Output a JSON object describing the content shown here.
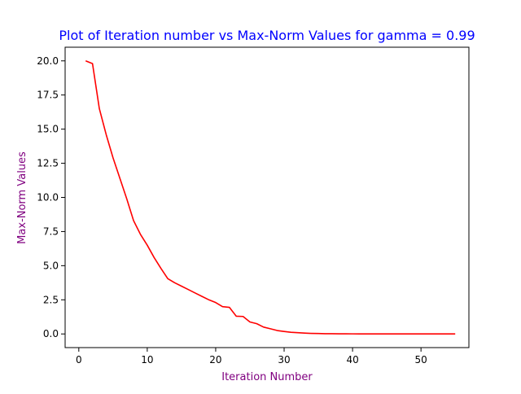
{
  "chart_data": {
    "type": "line",
    "title": "Plot of Iteration number vs Max-Norm Values for gamma = 0.99",
    "xlabel": "Iteration Number",
    "ylabel": "Max-Norm Values",
    "xlim": [
      -2,
      57
    ],
    "ylim": [
      -1,
      21
    ],
    "xticks": [
      0,
      10,
      20,
      30,
      40,
      50
    ],
    "xtick_labels": [
      "0",
      "10",
      "20",
      "30",
      "40",
      "50"
    ],
    "yticks": [
      0,
      2.5,
      5,
      7.5,
      10,
      12.5,
      15,
      17.5,
      20
    ],
    "ytick_labels": [
      "0.0",
      "2.5",
      "5.0",
      "7.5",
      "10.0",
      "12.5",
      "15.0",
      "17.5",
      "20.0"
    ],
    "grid": false,
    "legend": "none",
    "series": [
      {
        "name": "Max-Norm",
        "color": "#ff0000",
        "x": [
          1,
          2,
          3,
          4,
          5,
          6,
          7,
          8,
          9,
          10,
          11,
          12,
          13,
          14,
          15,
          16,
          17,
          18,
          19,
          20,
          21,
          22,
          23,
          24,
          25,
          26,
          27,
          28,
          29,
          30,
          31,
          32,
          33,
          34,
          35,
          36,
          37,
          38,
          39,
          40,
          41,
          42,
          43,
          44,
          45,
          46,
          47,
          48,
          49,
          50,
          51,
          52,
          53,
          54,
          55
        ],
        "values": [
          20.0,
          19.8,
          16.5,
          14.6,
          12.9,
          11.4,
          9.9,
          8.3,
          7.3,
          6.5,
          5.6,
          4.8,
          4.05,
          3.75,
          3.5,
          3.25,
          3.0,
          2.75,
          2.5,
          2.3,
          2.0,
          1.95,
          1.3,
          1.28,
          0.88,
          0.75,
          0.5,
          0.38,
          0.25,
          0.18,
          0.12,
          0.09,
          0.06,
          0.04,
          0.03,
          0.02,
          0.015,
          0.01,
          0.008,
          0.006,
          0.005,
          0.004,
          0.003,
          0.002,
          0.002,
          0.001,
          0.001,
          0.001,
          0.001,
          0.001,
          0.001,
          0.0005,
          0.0005,
          0.0005,
          0.0005
        ]
      }
    ],
    "colors": {
      "title": "#0000ff",
      "axis_label": "#800080",
      "axes": "#000000",
      "tick_label": "#000000"
    }
  }
}
